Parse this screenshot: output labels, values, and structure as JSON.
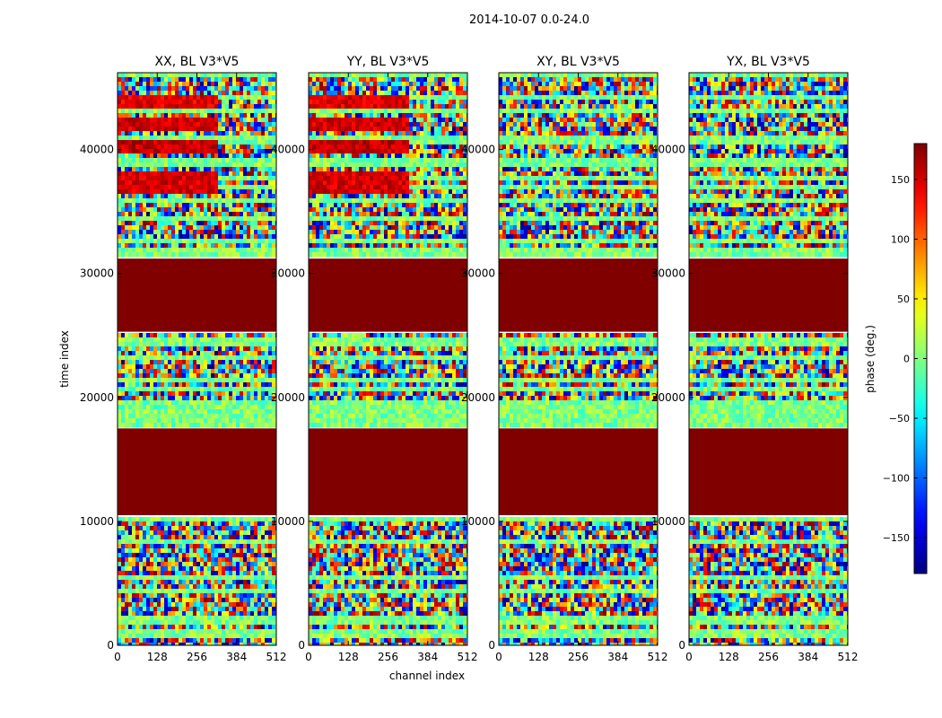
{
  "chart_data": {
    "type": "heatmap",
    "suptitle": "2014-10-07 0.0-24.0",
    "panels": [
      {
        "title": "XX, BL V3*V5",
        "polarization": "XX"
      },
      {
        "title": "YY, BL V3*V5",
        "polarization": "YY"
      },
      {
        "title": "XY, BL V3*V5",
        "polarization": "XY"
      },
      {
        "title": "YX, BL V3*V5",
        "polarization": "YX"
      }
    ],
    "xlabel": "channel index",
    "ylabel": "time index",
    "xlim": [
      0,
      512
    ],
    "ylim": [
      0,
      46200
    ],
    "xticks": [
      0,
      128,
      256,
      384,
      512
    ],
    "yticks": [
      0,
      10000,
      20000,
      30000,
      40000
    ],
    "colorbar": {
      "label": "phase (deg.)",
      "range": [
        -180,
        180
      ],
      "ticks": [
        150,
        100,
        50,
        0,
        -50,
        -100,
        -150
      ],
      "colormap": "jet"
    },
    "flagged_time_ranges": [
      [
        10500,
        17500
      ],
      [
        25300,
        31200
      ]
    ],
    "flagged_value": 180,
    "coherent_bands": {
      "XX": [
        {
          "t": [
            36500,
            38200
          ],
          "ch": [
            0,
            320
          ],
          "phase": 150
        },
        {
          "t": [
            39600,
            40800
          ],
          "ch": [
            0,
            320
          ],
          "phase": 155
        },
        {
          "t": [
            41500,
            42600
          ],
          "ch": [
            0,
            320
          ],
          "phase": 150
        },
        {
          "t": [
            43200,
            44300
          ],
          "ch": [
            0,
            320
          ],
          "phase": 145
        }
      ],
      "YY": [
        {
          "t": [
            36500,
            38200
          ],
          "ch": [
            0,
            320
          ],
          "phase": 150
        },
        {
          "t": [
            39600,
            40800
          ],
          "ch": [
            0,
            320
          ],
          "phase": 155
        },
        {
          "t": [
            41500,
            42600
          ],
          "ch": [
            0,
            320
          ],
          "phase": 150
        },
        {
          "t": [
            43200,
            44300
          ],
          "ch": [
            0,
            320
          ],
          "phase": 145
        }
      ],
      "XY": [],
      "YX": []
    }
  }
}
